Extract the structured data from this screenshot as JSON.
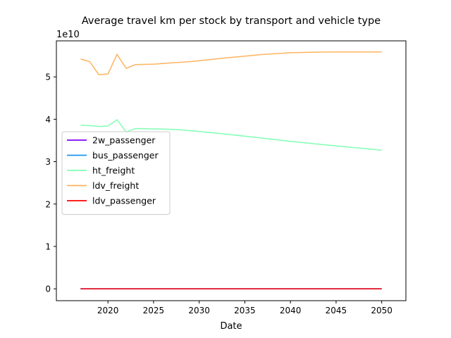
{
  "chart_data": {
    "type": "line",
    "title": "Average travel km per stock by transport and vehicle type",
    "xlabel": "Date",
    "ylabel": "",
    "y_offset_label": "1e10",
    "xlim": [
      2014.35,
      2052.65
    ],
    "ylim": [
      -0.28,
      5.85
    ],
    "y_scale": 10000000000.0,
    "xticks": [
      2020,
      2025,
      2030,
      2035,
      2040,
      2045,
      2050
    ],
    "yticks": [
      0,
      1,
      2,
      3,
      4,
      5
    ],
    "grid": false,
    "legend_position": "center-left",
    "series": [
      {
        "name": "2w_passenger",
        "color": "#8000ff",
        "x": [
          2017,
          2050
        ],
        "y": [
          0.0,
          0.0
        ]
      },
      {
        "name": "bus_passenger",
        "color": "#1996f3",
        "x": [
          2017,
          2050
        ],
        "y": [
          0.0,
          0.0
        ]
      },
      {
        "name": "ht_freight",
        "color": "#80ffb4",
        "x": [
          2017,
          2018,
          2019,
          2020,
          2021,
          2022,
          2023,
          2024,
          2025,
          2026,
          2027,
          2028,
          2029,
          2030,
          2032,
          2035,
          2040,
          2045,
          2050
        ],
        "y": [
          3.86,
          3.85,
          3.83,
          3.84,
          3.99,
          3.7,
          3.78,
          3.78,
          3.77,
          3.77,
          3.76,
          3.75,
          3.73,
          3.71,
          3.67,
          3.6,
          3.48,
          3.37,
          3.27
        ]
      },
      {
        "name": "ldv_freight",
        "color": "#ffb360",
        "x": [
          2017,
          2018,
          2019,
          2020,
          2021,
          2022,
          2023,
          2025,
          2027,
          2029,
          2030,
          2033,
          2035,
          2037,
          2040,
          2043,
          2045,
          2050
        ],
        "y": [
          5.42,
          5.36,
          5.05,
          5.07,
          5.53,
          5.2,
          5.29,
          5.3,
          5.33,
          5.36,
          5.38,
          5.45,
          5.49,
          5.53,
          5.57,
          5.585,
          5.59,
          5.59
        ]
      },
      {
        "name": "ldv_passenger",
        "color": "#ff0000",
        "x": [
          2017,
          2050
        ],
        "y": [
          0.0,
          0.0
        ]
      }
    ]
  }
}
